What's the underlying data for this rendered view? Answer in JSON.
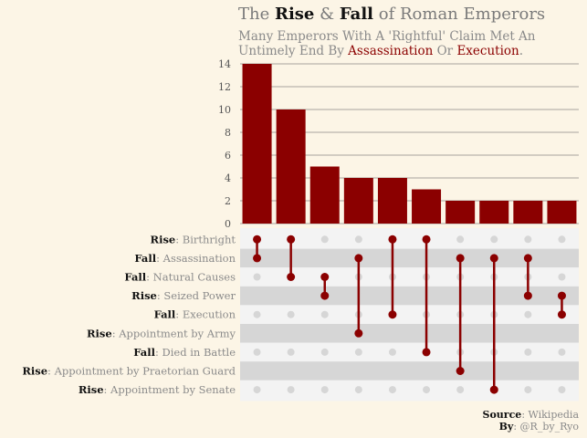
{
  "title": {
    "pre": "The",
    "rise": "Rise",
    "amp": "&",
    "fall": "Fall",
    "post": "of Roman Emperors"
  },
  "subtitle": {
    "line1": "Many Emperors With A 'Rightful' Claim Met An",
    "line2_pre": "Untimely End By",
    "assassination": "Assassination",
    "or": "Or",
    "execution": "Execution",
    "end": "."
  },
  "caption": {
    "source_label": "Source",
    "source_value": "Wikipedia",
    "by_label": "By",
    "by_value": "@R_by_Ryo"
  },
  "colors": {
    "bar": "#8b0000",
    "dot_active": "#8b0000",
    "dot_inactive": "#d6d6d6",
    "band_dark": "#d6d6d6",
    "band_light": "#f3f3f3",
    "background": "#fcf5e6"
  },
  "chart_data": {
    "type": "bar",
    "yticks": [
      "0",
      "2",
      "4",
      "6",
      "8",
      "10",
      "12",
      "14"
    ],
    "ylim": [
      0,
      14
    ],
    "grid": true,
    "values": [
      14,
      10,
      5,
      4,
      4,
      3,
      2,
      2,
      2,
      2
    ],
    "sets": [
      {
        "kind": "Rise",
        "name": "Birthright"
      },
      {
        "kind": "Fall",
        "name": "Assassination"
      },
      {
        "kind": "Fall",
        "name": "Natural Causes"
      },
      {
        "kind": "Rise",
        "name": "Seized Power"
      },
      {
        "kind": "Fall",
        "name": "Execution"
      },
      {
        "kind": "Rise",
        "name": "Appointment by Army"
      },
      {
        "kind": "Fall",
        "name": "Died in Battle"
      },
      {
        "kind": "Rise",
        "name": "Appointment by Praetorian Guard"
      },
      {
        "kind": "Rise",
        "name": "Appointment by Senate"
      }
    ],
    "combinations": [
      [
        0,
        1
      ],
      [
        0,
        2
      ],
      [
        2,
        3
      ],
      [
        1,
        5
      ],
      [
        0,
        4
      ],
      [
        0,
        6
      ],
      [
        1,
        7
      ],
      [
        1,
        8
      ],
      [
        1,
        3
      ],
      [
        3,
        4
      ]
    ]
  }
}
